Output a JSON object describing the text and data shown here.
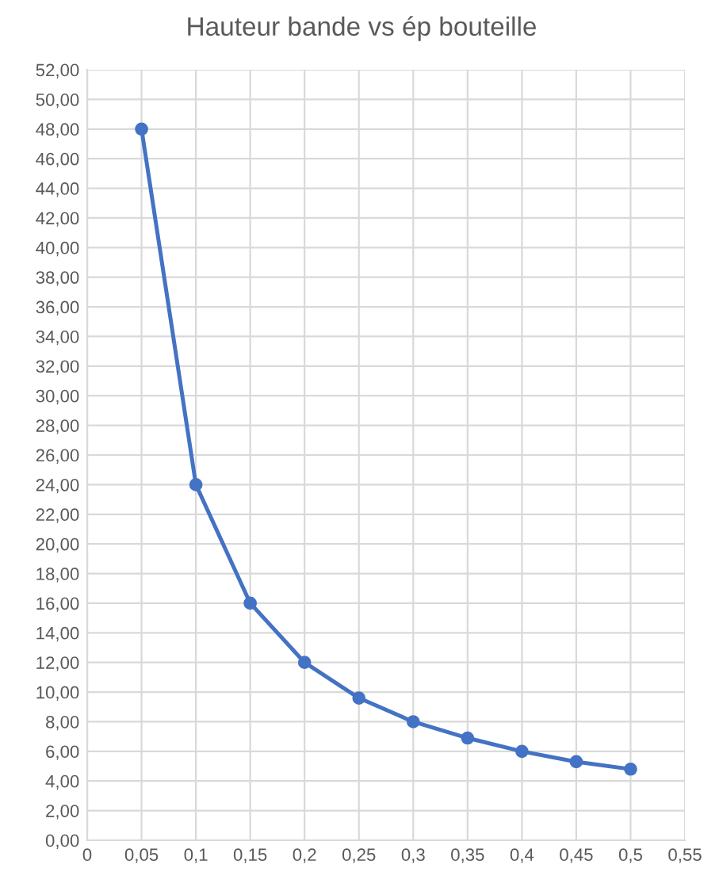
{
  "chart_data": {
    "type": "line",
    "title": "Hauteur bande vs ép bouteille",
    "x": [
      0.05,
      0.1,
      0.15,
      0.2,
      0.25,
      0.3,
      0.35,
      0.4,
      0.45,
      0.5
    ],
    "series": [
      {
        "color": "#4472c4",
        "values": [
          48,
          24,
          16,
          12,
          9.6,
          8,
          6.9,
          6,
          5.3,
          4.8
        ]
      }
    ],
    "marker": "circle",
    "line_style": "solid",
    "grid": true,
    "xlim": [
      0,
      0.55
    ],
    "xticks": [
      0,
      {
        "value": 0.05,
        "label": "0,05"
      },
      {
        "value": 0.1,
        "label": "0,1"
      },
      {
        "value": 0.15,
        "label": "0,15"
      },
      {
        "value": 0.2,
        "label": "0,2"
      },
      {
        "value": 0.25,
        "label": "0,25"
      },
      {
        "value": 0.3,
        "label": "0,3"
      },
      {
        "value": 0.35,
        "label": "0,35"
      },
      {
        "value": 0.4,
        "label": "0,4"
      },
      {
        "value": 0.45,
        "label": "0,45"
      },
      {
        "value": 0.5,
        "label": "0,5"
      },
      {
        "value": 0.55,
        "label": "0,55"
      }
    ],
    "ylim": [
      0,
      52
    ],
    "yticks": [
      {
        "value": 0,
        "label": "0,00"
      },
      {
        "value": 2,
        "label": "2,00"
      },
      {
        "value": 4,
        "label": "4,00"
      },
      {
        "value": 6,
        "label": "6,00"
      },
      {
        "value": 8,
        "label": "8,00"
      },
      {
        "value": 10,
        "label": "10,00"
      },
      {
        "value": 12,
        "label": "12,00"
      },
      {
        "value": 14,
        "label": "14,00"
      },
      {
        "value": 16,
        "label": "16,00"
      },
      {
        "value": 18,
        "label": "18,00"
      },
      {
        "value": 20,
        "label": "20,00"
      },
      {
        "value": 22,
        "label": "22,00"
      },
      {
        "value": 24,
        "label": "24,00"
      },
      {
        "value": 26,
        "label": "26,00"
      },
      {
        "value": 28,
        "label": "28,00"
      },
      {
        "value": 30,
        "label": "30,00"
      },
      {
        "value": 32,
        "label": "32,00"
      },
      {
        "value": 34,
        "label": "34,00"
      },
      {
        "value": 36,
        "label": "36,00"
      },
      {
        "value": 38,
        "label": "38,00"
      },
      {
        "value": 40,
        "label": "40,00"
      },
      {
        "value": 42,
        "label": "42,00"
      },
      {
        "value": 44,
        "label": "44,00"
      },
      {
        "value": 46,
        "label": "46,00"
      },
      {
        "value": 48,
        "label": "48,00"
      },
      {
        "value": 50,
        "label": "50,00"
      },
      {
        "value": 52,
        "label": "52,00"
      }
    ]
  }
}
